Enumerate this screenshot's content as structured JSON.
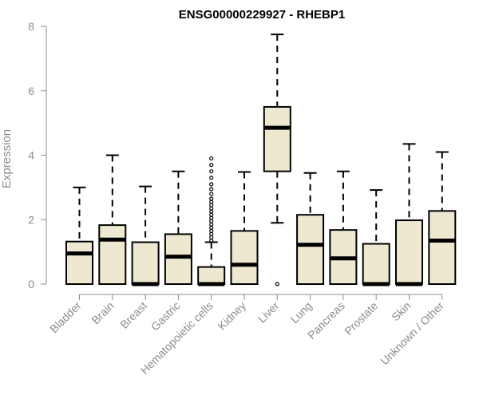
{
  "chart_data": {
    "type": "boxplot",
    "title": "ENSG00000229927 - RHEBP1",
    "ylabel": "Expression",
    "xlabel": "",
    "ylim": [
      0,
      8
    ],
    "yticks": [
      0,
      2,
      4,
      6,
      8
    ],
    "box_fill": "#efe8d0",
    "box_stroke": "#000000",
    "axis_color": "#8c8c8c",
    "categories": [
      "Bladder",
      "Brain",
      "Breast",
      "Gastric",
      "Hematopoietic cells",
      "Kidney",
      "Liver",
      "Lung",
      "Pancreas",
      "Prostate",
      "Skin",
      "Unknown / Other"
    ],
    "boxes": [
      {
        "q1": 0.0,
        "median": 0.95,
        "q3": 1.32,
        "whisker_low": 0.0,
        "whisker_high": 3.0,
        "outliers": []
      },
      {
        "q1": 0.0,
        "median": 1.38,
        "q3": 1.83,
        "whisker_low": 0.0,
        "whisker_high": 4.0,
        "outliers": []
      },
      {
        "q1": 0.0,
        "median": 0.0,
        "q3": 1.3,
        "whisker_low": 0.0,
        "whisker_high": 3.03,
        "outliers": []
      },
      {
        "q1": 0.0,
        "median": 0.85,
        "q3": 1.55,
        "whisker_low": 0.0,
        "whisker_high": 3.5,
        "outliers": []
      },
      {
        "q1": 0.0,
        "median": 0.0,
        "q3": 0.53,
        "whisker_low": 0.0,
        "whisker_high": 1.3,
        "outliers": [
          1.35,
          1.45,
          1.55,
          1.65,
          1.75,
          1.85,
          1.95,
          2.05,
          2.15,
          2.25,
          2.35,
          2.45,
          2.55,
          2.65,
          2.8,
          2.95,
          3.1,
          3.3,
          3.5,
          3.7,
          3.9
        ]
      },
      {
        "q1": 0.0,
        "median": 0.6,
        "q3": 1.65,
        "whisker_low": 0.0,
        "whisker_high": 3.48,
        "outliers": []
      },
      {
        "q1": 3.5,
        "median": 4.85,
        "q3": 5.5,
        "whisker_low": 1.9,
        "whisker_high": 7.75,
        "outliers": [
          0.0
        ]
      },
      {
        "q1": 0.0,
        "median": 1.22,
        "q3": 2.15,
        "whisker_low": 0.0,
        "whisker_high": 3.45,
        "outliers": []
      },
      {
        "q1": 0.0,
        "median": 0.8,
        "q3": 1.68,
        "whisker_low": 0.0,
        "whisker_high": 3.5,
        "outliers": []
      },
      {
        "q1": 0.0,
        "median": 0.0,
        "q3": 1.25,
        "whisker_low": 0.0,
        "whisker_high": 2.92,
        "outliers": []
      },
      {
        "q1": 0.0,
        "median": 0.0,
        "q3": 1.98,
        "whisker_low": 0.0,
        "whisker_high": 4.35,
        "outliers": []
      },
      {
        "q1": 0.0,
        "median": 1.35,
        "q3": 2.27,
        "whisker_low": 0.0,
        "whisker_high": 4.1,
        "outliers": []
      }
    ]
  }
}
